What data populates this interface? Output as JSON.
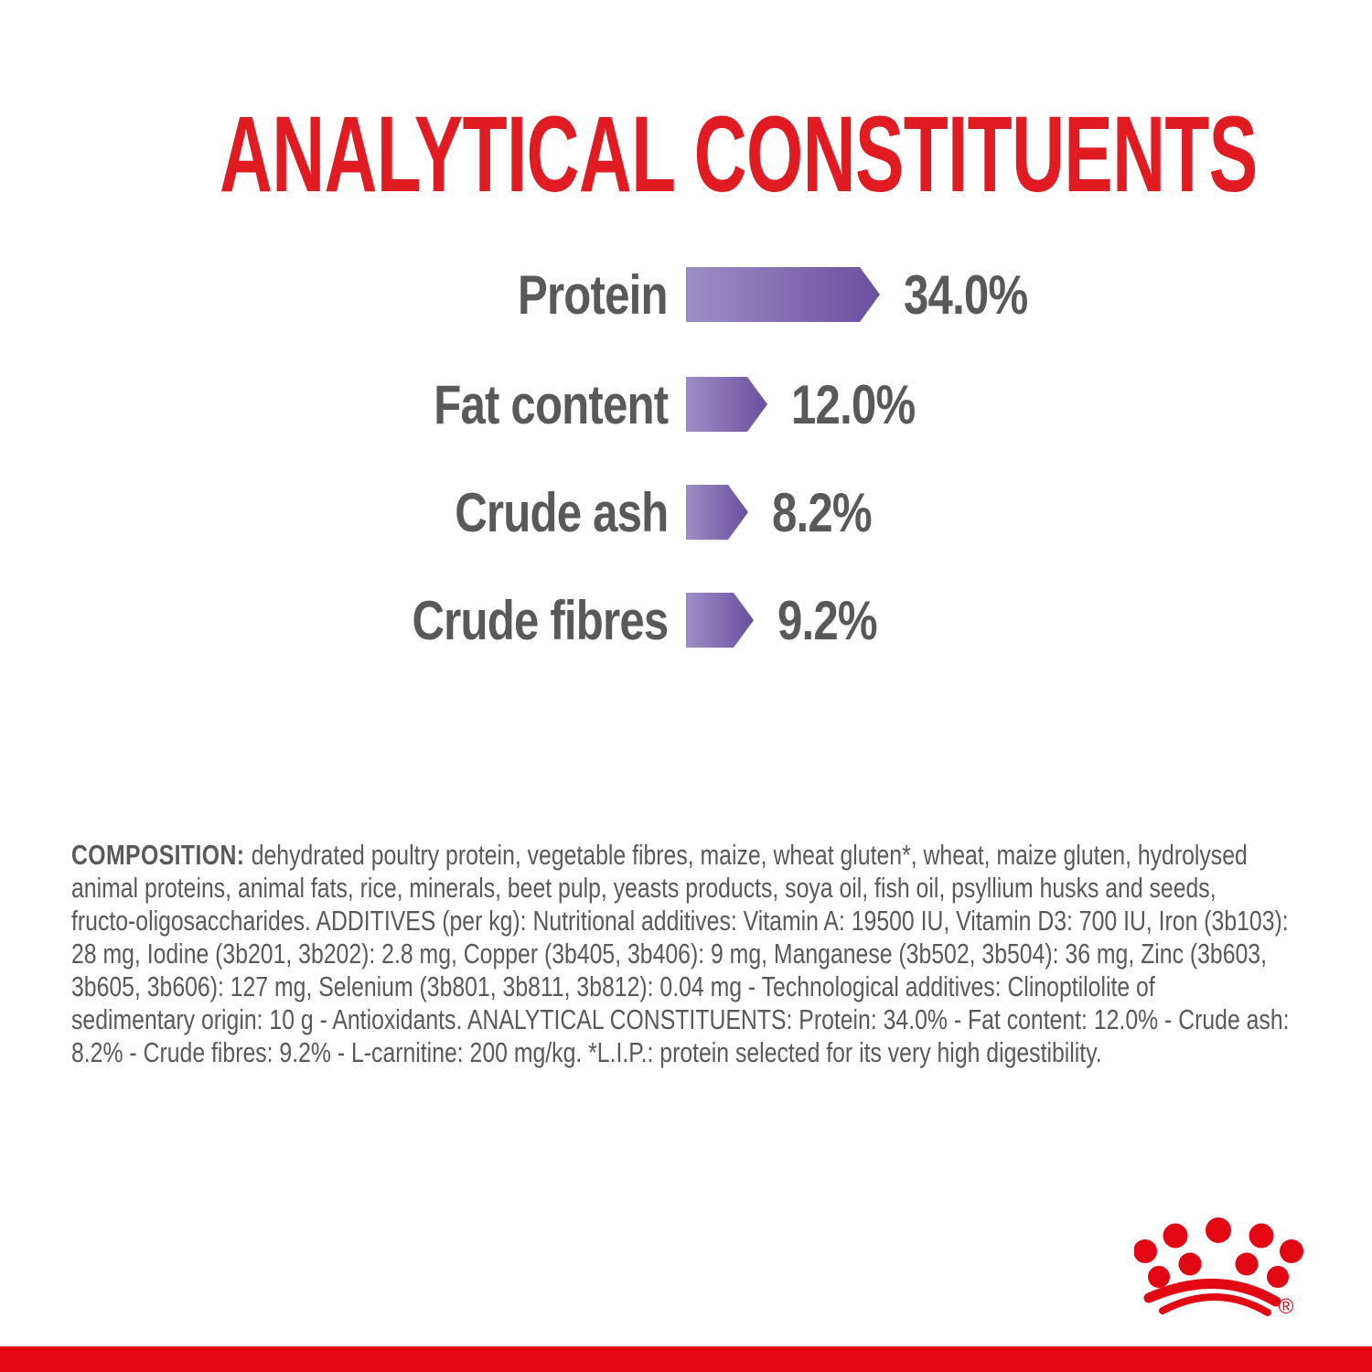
{
  "title": "ANALYTICAL CONSTITUENTS",
  "colors": {
    "title_red": "#e01b22",
    "logo_red": "#e30613",
    "stripe_red": "#e30613",
    "text_gray": "#58595b",
    "bar_gradient_light": "#9c8fc5",
    "bar_gradient_dark": "#6a4f9e"
  },
  "chart_data": {
    "type": "bar",
    "orientation": "horizontal",
    "title": "ANALYTICAL CONSTITUENTS",
    "categories": [
      "Protein",
      "Fat content",
      "Crude ash",
      "Crude fibres"
    ],
    "values": [
      34.0,
      12.0,
      8.2,
      9.2
    ],
    "unit": "%",
    "value_labels": [
      "34.0%",
      "12.0%",
      "8.2%",
      "9.2%"
    ],
    "xlim": [
      0,
      40
    ],
    "grid": false,
    "legend": false,
    "bar_style": "gradient arrow pointing right, light purple to dark purple"
  },
  "composition": {
    "heading": "COMPOSITION:",
    "lines": [
      "dehydrated poultry protein, vegetable fibres, maize, wheat gluten*, wheat, maize gluten, hydrolysed",
      "animal proteins, animal fats, rice, minerals, beet pulp, yeasts products, soya oil, fish oil, psyllium husks and seeds,",
      "fructo-oligosaccharides. ADDITIVES (per kg): Nutritional additives: Vitamin A: 19500 IU, Vitamin D3: 700 IU, Iron (3b103):",
      "28 mg, Iodine (3b201, 3b202): 2.8 mg, Copper (3b405, 3b406): 9 mg, Manganese (3b502, 3b504): 36 mg, Zinc (3b603,",
      "3b605, 3b606): 127 mg, Selenium (3b801, 3b811, 3b812): 0.04 mg - Technological additives: Clinoptilolite of",
      "sedimentary origin: 10 g - Antioxidants. ANALYTICAL CONSTITUENTS: Protein: 34.0% - Fat content: 12.0% - Crude ash:",
      "8.2% - Crude fibres: 9.2% - L-carnitine: 200 mg/kg. *L.I.P.: protein selected for its very high digestibility."
    ]
  },
  "logo": {
    "name": "royal-canin-crown",
    "registered_mark": "®"
  }
}
